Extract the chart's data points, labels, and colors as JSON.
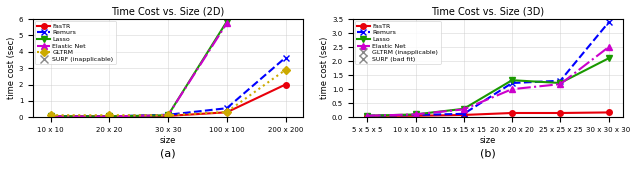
{
  "plot2d": {
    "title": "Time Cost vs. Size (2D)",
    "xlabel": "size",
    "ylabel": "time cost (sec)",
    "xtick_labels": [
      "10 x 10",
      "20 x 20",
      "30 x 30",
      "100 x 100",
      "200 x 200"
    ],
    "xtick_pos": [
      0,
      1,
      2,
      3,
      4
    ],
    "ylim": [
      0,
      6
    ],
    "yticks": [
      0,
      1,
      2,
      3,
      4,
      5,
      6
    ],
    "series": {
      "FasTR": {
        "values": [
          0.05,
          0.05,
          0.08,
          0.3,
          2.0
        ],
        "color": "#e8000b",
        "marker": "o",
        "linestyle": "-",
        "linewidth": 1.5,
        "markersize": 4
      },
      "Remurs": {
        "values": [
          0.05,
          0.05,
          0.15,
          0.55,
          3.65
        ],
        "color": "#0000ff",
        "marker": "x",
        "linestyle": "--",
        "linewidth": 1.5,
        "markersize": 5
      },
      "Lasso": {
        "values": [
          0.05,
          0.05,
          0.12,
          5.85,
          null
        ],
        "color": "#1a9900",
        "marker": "v",
        "linestyle": "-",
        "linewidth": 1.5,
        "markersize": 5
      },
      "Elastic Net": {
        "values": [
          0.05,
          0.05,
          0.12,
          5.75,
          null
        ],
        "color": "#cc00cc",
        "marker": "^",
        "linestyle": "-.",
        "linewidth": 1.5,
        "markersize": 5
      },
      "GLTRM": {
        "values": [
          0.12,
          0.12,
          0.12,
          0.32,
          2.9
        ],
        "color": "#ccaa00",
        "marker": "D",
        "linestyle": ":",
        "linewidth": 1.5,
        "markersize": 4
      },
      "SURF (inapplicable)": {
        "values": [
          null,
          null,
          null,
          null,
          null
        ],
        "color": "#888888",
        "marker": "x",
        "linestyle": "none",
        "linewidth": 1.5,
        "markersize": 6
      }
    },
    "legend_order": [
      "FasTR",
      "Remurs",
      "Lasso",
      "Elastic Net",
      "GLTRM",
      "SURF (inapplicable)"
    ],
    "subfig_label": "(a)"
  },
  "plot3d": {
    "title": "Time Cost vs. Size (3D)",
    "xlabel": "size",
    "ylabel": "time cost (sec)",
    "xtick_labels": [
      "5 x 5 x 5",
      "10 x 10 x 10",
      "15 x 15 x 15",
      "20 x 20 x 20",
      "25 x 25 x 25",
      "30 x 30 x 30"
    ],
    "xtick_pos": [
      0,
      1,
      2,
      3,
      4,
      5
    ],
    "ylim": [
      0,
      3.5
    ],
    "yticks": [
      0.0,
      0.5,
      1.0,
      1.5,
      2.0,
      2.5,
      3.0,
      3.5
    ],
    "series": {
      "FasTR": {
        "values": [
          0.05,
          0.05,
          0.08,
          0.15,
          0.15,
          0.17
        ],
        "color": "#e8000b",
        "marker": "o",
        "linestyle": "-",
        "linewidth": 1.5,
        "markersize": 4
      },
      "Remurs": {
        "values": [
          0.05,
          0.08,
          0.12,
          1.22,
          1.3,
          3.38
        ],
        "color": "#0000ff",
        "marker": "x",
        "linestyle": "--",
        "linewidth": 1.5,
        "markersize": 5
      },
      "Lasso": {
        "values": [
          0.05,
          0.1,
          0.3,
          1.32,
          1.22,
          2.1
        ],
        "color": "#1a9900",
        "marker": "v",
        "linestyle": "-",
        "linewidth": 1.5,
        "markersize": 5
      },
      "Elastic Net": {
        "values": [
          0.05,
          0.1,
          0.28,
          1.0,
          1.18,
          2.5
        ],
        "color": "#cc00cc",
        "marker": "^",
        "linestyle": "-.",
        "linewidth": 1.5,
        "markersize": 5
      },
      "GLTRM (inapplicable)": {
        "values": [
          null,
          null,
          null,
          null,
          null,
          null
        ],
        "color": "#888888",
        "marker": "x",
        "linestyle": "none",
        "linewidth": 1.5,
        "markersize": 6
      },
      "SURF (bad fit)": {
        "values": [
          null,
          null,
          null,
          null,
          null,
          null
        ],
        "color": "#888888",
        "marker": "x",
        "linestyle": "none",
        "linewidth": 1.5,
        "markersize": 6
      }
    },
    "legend_order": [
      "FasTR",
      "Remurs",
      "Lasso",
      "Elastic Net",
      "GLTRM (inapplicable)",
      "SURF (bad fit)"
    ],
    "subfig_label": "(b)"
  }
}
